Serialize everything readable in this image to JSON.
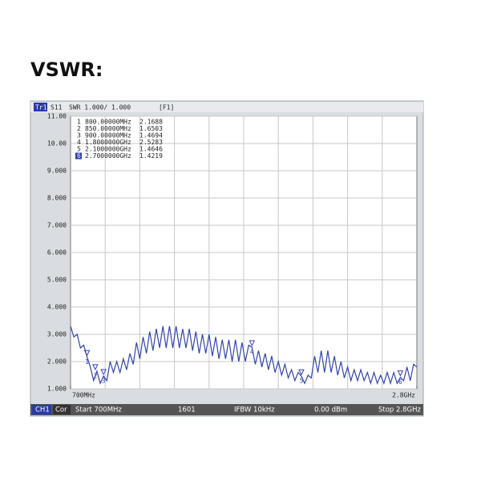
{
  "heading": "VSWR:",
  "chart_data": {
    "type": "line",
    "header": {
      "trace": "Tr1",
      "param": "S11",
      "format": "SWR 1.000/ 1.000",
      "tag": "[F1]"
    },
    "footer": {
      "channel": "CH1",
      "correction": "Cor",
      "start": "Start 700MHz",
      "points": "1601",
      "ifbw": "IFBW 10kHz",
      "power": "0.00 dBm",
      "stop": "Stop 2.8GHz"
    },
    "xlim": [
      700,
      2800
    ],
    "xticks": [
      {
        "value": 700,
        "label": "700MHz"
      },
      {
        "value": 2800,
        "label": "2.8GHz"
      }
    ],
    "ylim": [
      1,
      11
    ],
    "yticks": [
      {
        "value": 1,
        "label": "1.000"
      },
      {
        "value": 2,
        "label": "2.000"
      },
      {
        "value": 3,
        "label": "3.000"
      },
      {
        "value": 4,
        "label": "4.000"
      },
      {
        "value": 5,
        "label": "5.000"
      },
      {
        "value": 6,
        "label": "6.000"
      },
      {
        "value": 7,
        "label": "7.000"
      },
      {
        "value": 8,
        "label": "8.000"
      },
      {
        "value": 9,
        "label": "9.000"
      },
      {
        "value": 10,
        "label": "10.00"
      },
      {
        "value": 11,
        "label": "11.00"
      }
    ],
    "grid": true,
    "series": [
      {
        "color": "#3346a8",
        "x": [
          700,
          720,
          740,
          760,
          780,
          800,
          820,
          840,
          860,
          880,
          900,
          920,
          940,
          960,
          980,
          1000,
          1020,
          1040,
          1060,
          1080,
          1100,
          1120,
          1140,
          1160,
          1180,
          1200,
          1220,
          1240,
          1260,
          1280,
          1300,
          1320,
          1340,
          1360,
          1380,
          1400,
          1420,
          1440,
          1460,
          1480,
          1500,
          1520,
          1540,
          1560,
          1580,
          1600,
          1620,
          1640,
          1660,
          1680,
          1700,
          1720,
          1740,
          1760,
          1780,
          1800,
          1820,
          1840,
          1860,
          1880,
          1900,
          1920,
          1940,
          1960,
          1980,
          2000,
          2020,
          2040,
          2060,
          2080,
          2100,
          2120,
          2140,
          2160,
          2180,
          2200,
          2220,
          2240,
          2260,
          2280,
          2300,
          2320,
          2340,
          2360,
          2380,
          2400,
          2420,
          2440,
          2460,
          2480,
          2500,
          2520,
          2540,
          2560,
          2580,
          2600,
          2620,
          2640,
          2660,
          2680,
          2700,
          2720,
          2740,
          2760,
          2780,
          2800
        ],
        "values": [
          3.3,
          2.9,
          3.0,
          2.5,
          2.6,
          2.17,
          1.8,
          1.3,
          1.65,
          1.2,
          1.47,
          1.3,
          2.0,
          1.6,
          2.0,
          1.6,
          2.1,
          1.7,
          2.3,
          1.9,
          2.7,
          2.1,
          2.9,
          2.3,
          3.1,
          2.4,
          3.2,
          2.5,
          3.3,
          2.5,
          3.3,
          2.5,
          3.3,
          2.5,
          3.2,
          2.5,
          3.2,
          2.4,
          3.1,
          2.3,
          3.0,
          2.3,
          3.0,
          2.2,
          2.9,
          2.1,
          2.8,
          2.1,
          2.8,
          2.0,
          2.8,
          2.0,
          2.7,
          2.0,
          2.6,
          2.53,
          1.9,
          2.4,
          1.8,
          2.3,
          1.7,
          2.2,
          1.6,
          2.0,
          1.5,
          1.9,
          1.4,
          1.7,
          1.3,
          1.6,
          1.46,
          1.2,
          1.5,
          1.4,
          2.2,
          1.6,
          2.4,
          1.6,
          2.4,
          1.6,
          2.2,
          1.5,
          2.0,
          1.4,
          1.8,
          1.3,
          1.7,
          1.3,
          1.7,
          1.3,
          1.6,
          1.2,
          1.6,
          1.2,
          1.5,
          1.2,
          1.6,
          1.2,
          1.6,
          1.2,
          1.42,
          1.3,
          1.8,
          1.3,
          1.9,
          1.8
        ]
      }
    ],
    "markers": [
      {
        "number": "1",
        "freq": {
          "value": 800,
          "label": "800.00000MHz"
        },
        "value": 2.1688
      },
      {
        "number": "2",
        "freq": {
          "value": 850,
          "label": "850.00000MHz"
        },
        "value": 1.6503
      },
      {
        "number": "3",
        "freq": {
          "value": 900,
          "label": "900.00000MHz"
        },
        "value": 1.4694
      },
      {
        "number": "4",
        "freq": {
          "value": 1800,
          "label": "1.8000000GHz"
        },
        "value": 2.5283
      },
      {
        "number": "5",
        "freq": {
          "value": 2100,
          "label": "2.1000000GHz"
        },
        "value": 1.4646
      },
      {
        "number": "6",
        "freq": {
          "value": 2700,
          "label": "2.7000000GHz"
        },
        "value": 1.4219
      }
    ]
  }
}
